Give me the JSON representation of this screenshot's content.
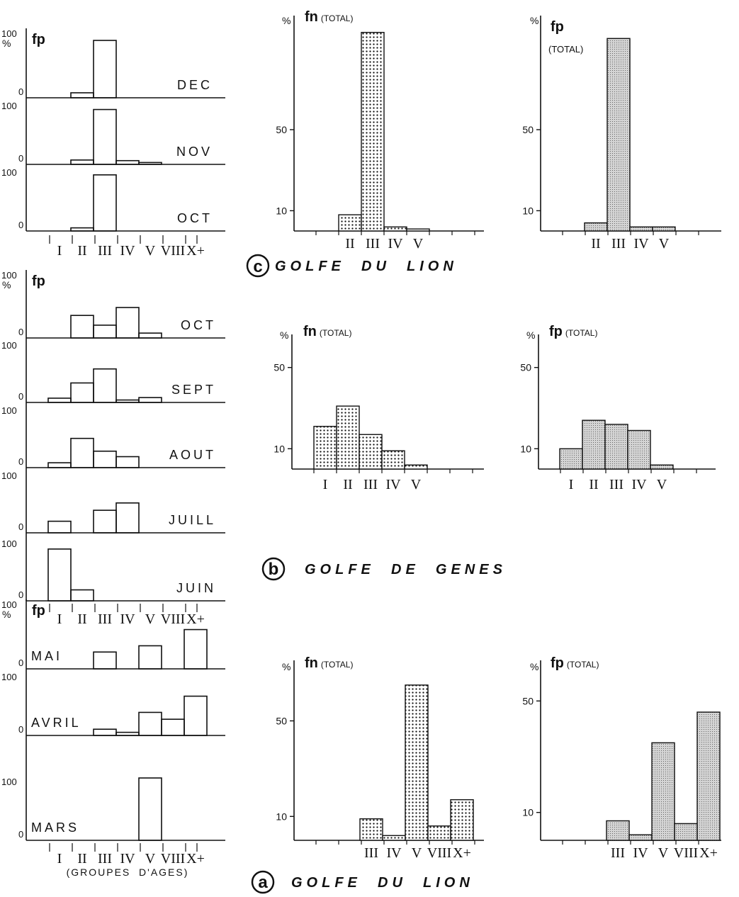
{
  "letter_c": "c",
  "letter_b": "b",
  "letter_a": "a",
  "title_c": "GOLFE  DU  LION",
  "title_b": "GOLFE  DE  GENES",
  "title_a": "GOLFE  DU  LION",
  "age_caption": "(GROUPES  D'AGES)",
  "chart_data": [
    {
      "type": "bar",
      "group": "c",
      "kind": "monthly",
      "ylabel": "fp",
      "yunit": "%",
      "categories": [
        "I",
        "II",
        "III",
        "IV",
        "V",
        "VIII",
        "X+"
      ],
      "ylim": [
        0,
        100
      ],
      "months": [
        {
          "name": "DEC",
          "values": [
            0,
            8,
            92,
            0,
            0,
            0,
            0
          ]
        },
        {
          "name": "NOV",
          "values": [
            0,
            7,
            88,
            6,
            3,
            0,
            0
          ]
        },
        {
          "name": "OCT",
          "values": [
            0,
            5,
            90,
            0,
            0,
            0,
            0
          ]
        }
      ]
    },
    {
      "type": "bar",
      "group": "c",
      "kind": "total",
      "texture": "dots",
      "ylabel": "fn",
      "ylabel_suffix": "(TOTAL)",
      "yunit": "%",
      "yticks": [
        10,
        50
      ],
      "ylim": [
        0,
        100
      ],
      "categories": [
        "II",
        "III",
        "IV",
        "V"
      ],
      "values": [
        8,
        98,
        2,
        1
      ]
    },
    {
      "type": "bar",
      "group": "c",
      "kind": "total",
      "texture": "grey",
      "ylabel": "fp",
      "ylabel_suffix": "(TOTAL)",
      "yunit": "%",
      "yticks": [
        10,
        50
      ],
      "ylim": [
        0,
        100
      ],
      "categories": [
        "II",
        "III",
        "IV",
        "V"
      ],
      "values": [
        4,
        95,
        2,
        2
      ]
    },
    {
      "type": "bar",
      "group": "b",
      "kind": "monthly",
      "ylabel": "fp",
      "yunit": "%",
      "categories": [
        "I",
        "II",
        "III",
        "IV",
        "V",
        "VIII",
        "X+"
      ],
      "ylim": [
        0,
        100
      ],
      "months": [
        {
          "name": "OCT",
          "values": [
            0,
            37,
            21,
            50,
            8,
            0,
            0
          ]
        },
        {
          "name": "SEPT",
          "values": [
            7,
            32,
            55,
            4,
            8,
            0,
            0
          ]
        },
        {
          "name": "AOUT",
          "values": [
            8,
            48,
            27,
            18,
            0,
            0,
            0
          ]
        },
        {
          "name": "JUILL",
          "values": [
            19,
            0,
            37,
            49,
            0,
            0,
            0
          ]
        },
        {
          "name": "JUIN",
          "values": [
            85,
            18,
            0,
            0,
            0,
            0,
            0
          ]
        }
      ]
    },
    {
      "type": "bar",
      "group": "b",
      "kind": "total",
      "texture": "dots",
      "ylabel": "fn",
      "ylabel_suffix": "(TOTAL)",
      "yunit": "%",
      "yticks": [
        10,
        50
      ],
      "ylim": [
        0,
        60
      ],
      "categories": [
        "I",
        "II",
        "III",
        "IV",
        "V"
      ],
      "values": [
        21,
        31,
        17,
        9,
        2
      ]
    },
    {
      "type": "bar",
      "group": "b",
      "kind": "total",
      "texture": "grey",
      "ylabel": "fp",
      "ylabel_suffix": "(TOTAL)",
      "yunit": "%",
      "yticks": [
        10,
        50
      ],
      "ylim": [
        0,
        60
      ],
      "categories": [
        "I",
        "II",
        "III",
        "IV",
        "V"
      ],
      "values": [
        10,
        24,
        22,
        19,
        2
      ]
    },
    {
      "type": "bar",
      "group": "a",
      "kind": "monthly",
      "ylabel": "fp",
      "yunit": "%",
      "categories": [
        "I",
        "II",
        "III",
        "IV",
        "V",
        "VIII",
        "X+"
      ],
      "ylim": [
        0,
        100
      ],
      "months": [
        {
          "name": "MAI",
          "values": [
            0,
            0,
            27,
            0,
            37,
            0,
            63
          ]
        },
        {
          "name": "AVRIL",
          "values": [
            0,
            0,
            10,
            5,
            37,
            26,
            63
          ]
        },
        {
          "name": "MARS",
          "values": [
            0,
            0,
            0,
            0,
            100,
            0,
            0
          ]
        }
      ]
    },
    {
      "type": "bar",
      "group": "a",
      "kind": "total",
      "texture": "dots",
      "ylabel": "fn",
      "ylabel_suffix": "(TOTAL)",
      "yunit": "%",
      "yticks": [
        10,
        50
      ],
      "ylim": [
        0,
        70
      ],
      "categories": [
        "III",
        "IV",
        "V",
        "VIII",
        "X+"
      ],
      "values": [
        9,
        2,
        65,
        6,
        17
      ]
    },
    {
      "type": "bar",
      "group": "a",
      "kind": "total",
      "texture": "grey",
      "ylabel": "fp",
      "ylabel_suffix": "(TOTAL)",
      "yunit": "%",
      "yticks": [
        10,
        50
      ],
      "ylim": [
        0,
        60
      ],
      "categories": [
        "III",
        "IV",
        "V",
        "VIII",
        "X+"
      ],
      "values": [
        7,
        2,
        35,
        6,
        46
      ]
    }
  ]
}
